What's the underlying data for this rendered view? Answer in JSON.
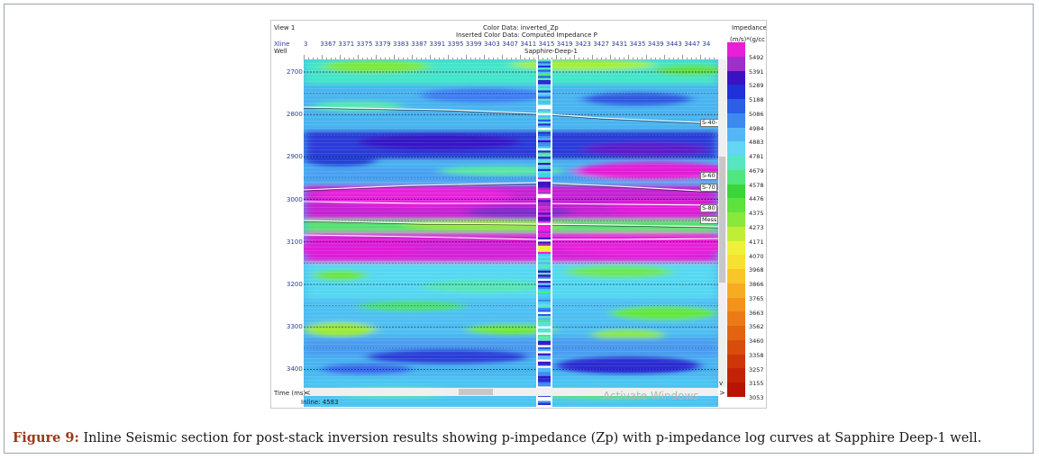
{
  "view": {
    "title": "View 1",
    "color_data": "Color Data: inverted_Zp",
    "inserted_color_data": "Inserted Color Data: Computed Impedance P",
    "xline_label": "Xline",
    "well_label": "Well",
    "well_name": "Sapphire-Deep-1",
    "time_label": "Time (ms)",
    "inline_label": "Inline: 4583",
    "watermark": "Activate Windows",
    "xline_ticks": [
      "3",
      "3367",
      "3371",
      "3375",
      "3379",
      "3383",
      "3387",
      "3391",
      "3395",
      "3399",
      "3403",
      "3407",
      "3411",
      "3415",
      "3419",
      "3423",
      "3427",
      "3431",
      "3435",
      "3439",
      "3443",
      "3447",
      "34"
    ],
    "time_ticks": [
      "2700",
      "2800",
      "2900",
      "3000",
      "3100",
      "3200",
      "3300",
      "3400"
    ],
    "horizons": [
      "S-40-",
      "S-60",
      "S-70",
      "S-80",
      "Mess"
    ],
    "scroll_left": "<",
    "scroll_right": ">",
    "scroll_down": "v"
  },
  "colorbar": {
    "title": "Impedance",
    "units": "(m/s)*(g/cc",
    "labels": [
      "5492",
      "5391",
      "5289",
      "5188",
      "5086",
      "4984",
      "4883",
      "4781",
      "4679",
      "4578",
      "4476",
      "4375",
      "4273",
      "4171",
      "4070",
      "3968",
      "3866",
      "3765",
      "3663",
      "3562",
      "3460",
      "3358",
      "3257",
      "3155",
      "3053"
    ],
    "colors": [
      "#e81fd9",
      "#a02ec8",
      "#3b12c2",
      "#2130d8",
      "#2a5fe6",
      "#3c8af0",
      "#56b6f5",
      "#62d6f2",
      "#58e6c0",
      "#52e67e",
      "#3bd43b",
      "#5ee23c",
      "#8ae83c",
      "#c0ee37",
      "#eef03a",
      "#f6e133",
      "#f8c628",
      "#f6ac22",
      "#f3931c",
      "#ec7a16",
      "#e26411",
      "#d84d0c",
      "#cd3708",
      "#c32305",
      "#b81403"
    ]
  },
  "caption": {
    "label": "Figure 9:",
    "text": " Inline Seismic section for post-stack inversion results showing p-impedance (Zp) with p-impedance log curves at Sapphire Deep-1 well."
  }
}
